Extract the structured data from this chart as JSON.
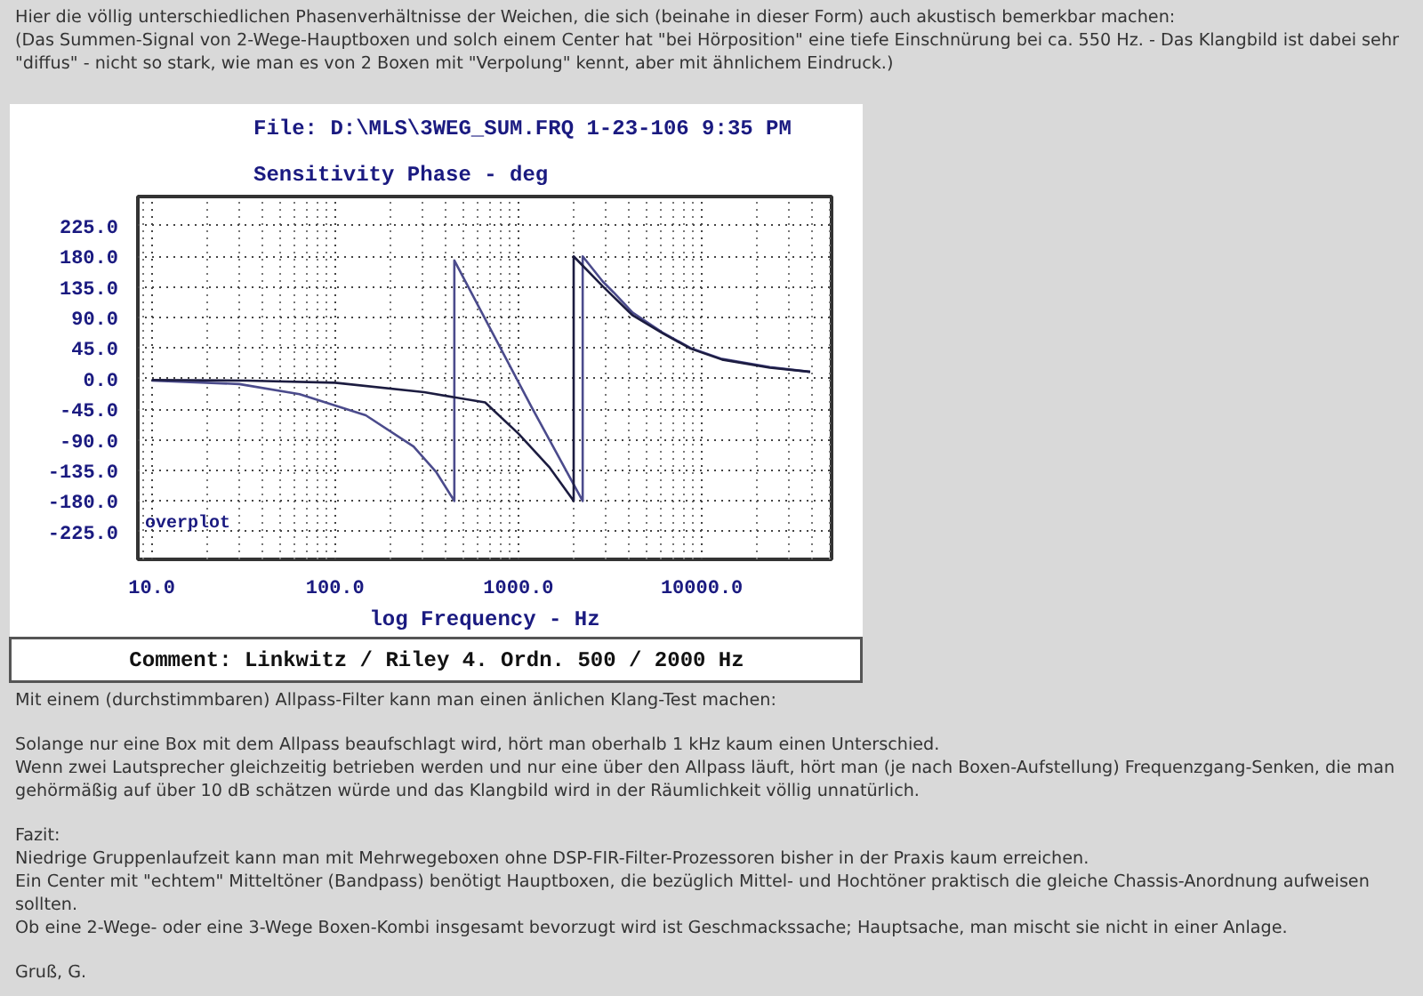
{
  "chart_data": {
    "type": "line",
    "title": "File: D:\\MLS\\3WEG_SUM.FRQ 1-23-106 9:35 PM",
    "subtitle": "Hier die völlig unterschiedlichen Phasenverhältnisse der Weichen, die sich (beinahe in dieser Form) auch akustisch bemerkbar machen:\n(Das Summen-Signal von 2-Wege-Hauptboxen und solch einem Center hat \"bei Hörposition\" eine tiefe Einschnürung bei ca. 550 Hz. - Das Klangbild ist dabei sehr \"diffus\" - nicht so stark, wie man es von 2 Boxen mit \"Verpolung\" kennt, aber mit ähnlichem Eindruck.)",
    "ylabel": "Sensitivity Phase - deg",
    "xlabel": "log Frequency - Hz",
    "log": "x",
    "xlim": [
      8.4,
      51000
    ],
    "ylim": [
      -266,
      268
    ],
    "xticks": [
      {
        "value": 10,
        "label": "10.0"
      },
      {
        "value": 100,
        "label": "100.0"
      },
      {
        "value": 1000,
        "label": "1000.0"
      },
      {
        "value": 10000,
        "label": "10000.0"
      }
    ],
    "yticks": [
      {
        "value": -225,
        "label": "-225.0"
      },
      {
        "value": -180,
        "label": "-180.0"
      },
      {
        "value": -135,
        "label": "-135.0"
      },
      {
        "value": -90,
        "label": "-90.0"
      },
      {
        "value": -45,
        "label": "-45.0"
      },
      {
        "value": 0,
        "label": "0.0"
      },
      {
        "value": 45,
        "label": "45.0"
      },
      {
        "value": 90,
        "label": "90.0"
      },
      {
        "value": 135,
        "label": "135.0"
      },
      {
        "value": 180,
        "label": "180.0"
      },
      {
        "value": 225,
        "label": "225.0"
      }
    ],
    "grid": true,
    "line_style": "solid",
    "marker": "none",
    "series": [
      {
        "color": "#4b4b8c",
        "x": [
          10,
          30,
          64,
          147,
          268,
          357,
          447,
          447,
          1180,
          2240,
          2240,
          2880,
          3300,
          4200,
          6100,
          8700,
          12900,
          23500,
          39000
        ],
        "values": [
          -3,
          -8,
          -23,
          -54,
          -100,
          -138,
          -180,
          174,
          -42,
          -180,
          180,
          143,
          127,
          97,
          68,
          45,
          29,
          17,
          10
        ]
      },
      {
        "color": "#1c1c40",
        "x": [
          10,
          33,
          100,
          306,
          658,
          1000,
          1470,
          2000,
          2000,
          2880,
          4200,
          6100,
          8700,
          12900,
          23500,
          39000
        ],
        "values": [
          -2,
          -3,
          -6,
          -20,
          -35,
          -81,
          -130,
          -180,
          180,
          136,
          93,
          67,
          44,
          28,
          16,
          10
        ]
      }
    ],
    "annotations": [
      "overplot",
      "Comment: Linkwitz / Riley 4. Ordn. 500 / 2000 Hz",
      "Mit einem (durchstimmbaren) Allpass-Filter kann man einen änlichen Klang-Test machen:",
      "Solange nur eine Box mit dem Allpass beaufschlagt wird, hört man oberhalb 1 kHz kaum einen Unterschied.\nWenn zwei Lautsprecher gleichzeitig betrieben werden und nur eine über den Allpass läuft, hört man (je nach Boxen-Aufstellung) Frequenzgang-Senken, die man gehörmäßig auf über 10 dB schätzen würde und das Klangbild wird in der Räumlichkeit völlig unnatürlich.",
      "Fazit:\nNiedrige Gruppenlaufzeit kann man mit Mehrwegeboxen ohne DSP-FIR-Filter-Prozessoren bisher in der Praxis kaum erreichen.\nEin Center mit \"echtem\" Mitteltöner (Bandpass) benötigt Hauptboxen, die bezüglich Mittel- und Hochtöner praktisch die gleiche Chassis-Anordnung aufweisen sollten.\nOb eine 2-Wege- oder eine 3-Wege Boxen-Kombi insgesamt bevorzugt wird ist Geschmackssache; Hauptsache, man mischt sie nicht in einer Anlage.",
      "Gruß, G."
    ]
  }
}
